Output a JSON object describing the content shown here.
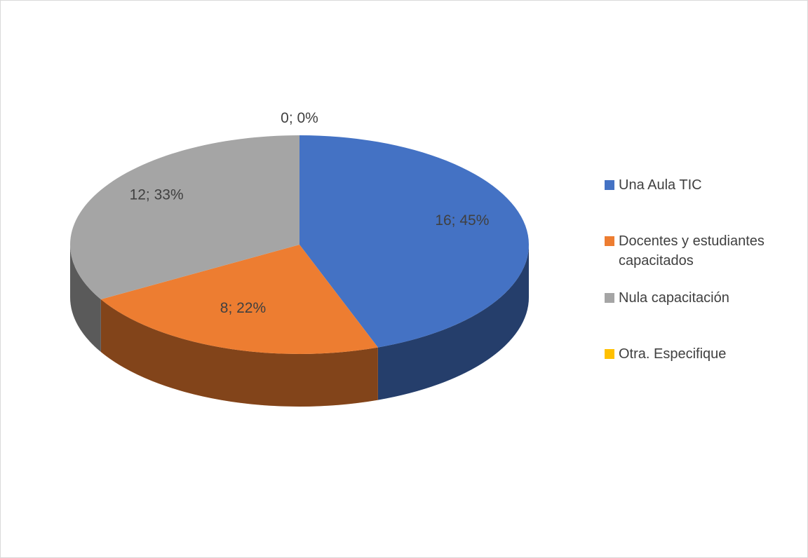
{
  "chart_data": {
    "type": "pie3d",
    "categories": [
      "Una Aula TIC",
      "Docentes y estudiantes capacitados",
      "Nula capacitación",
      "Otra. Especifique"
    ],
    "values": [
      16,
      8,
      12,
      0
    ],
    "value_labels": [
      "16; 45%",
      "8; 22%",
      "12; 33%",
      "0; 0%"
    ],
    "colors": [
      "#4472c4",
      "#ed7d31",
      "#a5a5a5",
      "#ffc000"
    ],
    "legend": "right"
  }
}
